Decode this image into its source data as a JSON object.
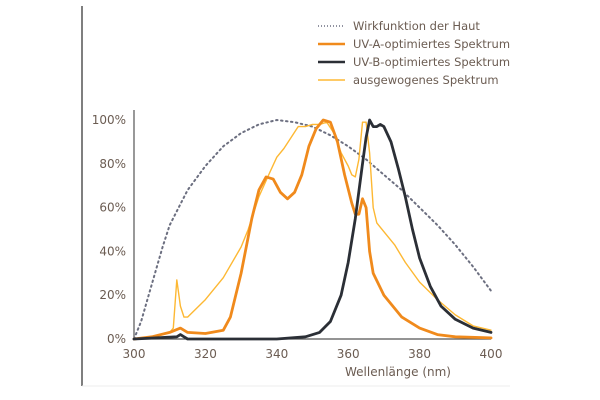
{
  "chart_data": {
    "type": "line",
    "title": "",
    "xlabel": "Wellenlänge (nm)",
    "ylabel": "",
    "xlim": [
      300,
      400
    ],
    "ylim": [
      0,
      100
    ],
    "xticks": [
      "300",
      "320",
      "340",
      "360",
      "380",
      "400"
    ],
    "xtick_values": [
      300,
      320,
      340,
      360,
      380,
      400
    ],
    "yticks": [
      "0%",
      "20%",
      "40%",
      "60%",
      "80%",
      "100%"
    ],
    "ytick_values": [
      0,
      20,
      40,
      60,
      80,
      100
    ],
    "grid": false,
    "legend_position": "top-right",
    "series": [
      {
        "name": "Wirkfunktion der Haut",
        "color": "#6c6f80",
        "style": "dotted",
        "x": [
          300,
          302,
          305,
          308,
          310,
          315,
          320,
          325,
          330,
          335,
          340,
          345,
          350,
          355,
          360,
          365,
          370,
          375,
          380,
          385,
          390,
          395,
          400
        ],
        "y": [
          0,
          8,
          25,
          42,
          52,
          68,
          79,
          88,
          94,
          98,
          100,
          99,
          97,
          93,
          88,
          82,
          75,
          68,
          60,
          52,
          43,
          33,
          22
        ]
      },
      {
        "name": "UV-A-optimiertes Spektrum",
        "color": "#f08a1c",
        "style": "thick",
        "x": [
          300,
          305,
          310,
          313,
          315,
          320,
          325,
          327,
          330,
          333,
          335,
          337,
          339,
          341,
          343,
          345,
          347,
          349,
          351,
          353,
          355,
          357,
          359,
          361,
          362,
          363,
          364,
          365,
          366,
          367,
          370,
          375,
          380,
          385,
          390,
          400
        ],
        "y": [
          0,
          1,
          3,
          5,
          3,
          2.5,
          4,
          10,
          30,
          55,
          68,
          74,
          73,
          67,
          64,
          67,
          75,
          88,
          96,
          100,
          99,
          90,
          75,
          62,
          57,
          57,
          64,
          60,
          40,
          30,
          20,
          10,
          5,
          2,
          1,
          0.5
        ]
      },
      {
        "name": "UV-B-optimiertes Spektrum",
        "color": "#2b2f36",
        "style": "thick",
        "x": [
          300,
          312,
          313,
          314,
          315,
          340,
          348,
          352,
          355,
          358,
          360,
          362,
          364,
          365,
          366,
          367,
          368,
          369,
          370,
          372,
          374,
          376,
          378,
          380,
          383,
          386,
          390,
          395,
          400
        ],
        "y": [
          0,
          1,
          2,
          1,
          0,
          0,
          1,
          3,
          8,
          20,
          35,
          55,
          80,
          92,
          100,
          97,
          97,
          98,
          97,
          90,
          78,
          65,
          50,
          37,
          24,
          15,
          9,
          5,
          3
        ]
      },
      {
        "name": "ausgewogenes Spektrum",
        "color": "#fdb833",
        "style": "thin",
        "x": [
          300,
          305,
          310,
          311,
          312,
          313,
          314,
          315,
          320,
          325,
          330,
          332,
          335,
          338,
          340,
          342,
          344,
          346,
          348,
          350,
          352,
          354,
          356,
          358,
          360,
          361,
          362,
          363,
          364,
          365,
          366,
          367,
          368,
          370,
          373,
          376,
          380,
          385,
          390,
          395,
          400
        ],
        "y": [
          0,
          1,
          3,
          5,
          27,
          15,
          10,
          10,
          18,
          28,
          42,
          50,
          65,
          76,
          83,
          87,
          92,
          97,
          97,
          98,
          98,
          99,
          94,
          85,
          79,
          75,
          74,
          82,
          99,
          99,
          85,
          60,
          53,
          49,
          43,
          35,
          26,
          18,
          11,
          6,
          4
        ]
      }
    ]
  }
}
